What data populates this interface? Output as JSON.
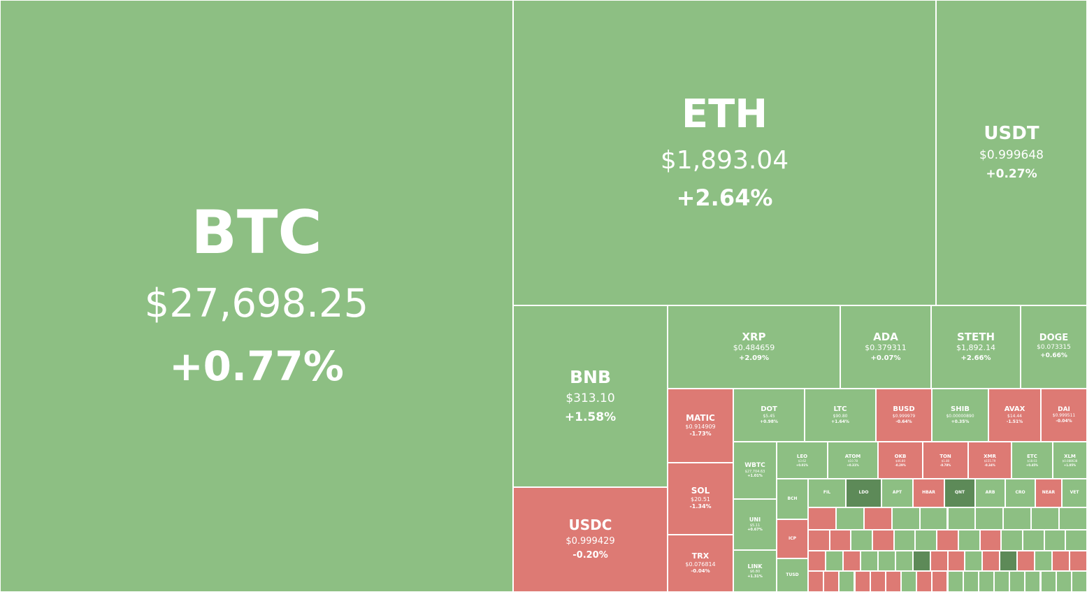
{
  "colors": {
    "up": "#8dbf83",
    "down": "#dd7a74",
    "up_strong": "#5d8a58",
    "down_strong": "#b34a44",
    "text": "#ffffff"
  },
  "chart_data": {
    "type": "treemap",
    "tiles": [
      {
        "symbol": "BTC",
        "price": "$27,698.25",
        "change": "+0.77%",
        "direction": "up"
      },
      {
        "symbol": "ETH",
        "price": "$1,893.04",
        "change": "+2.64%",
        "direction": "up"
      },
      {
        "symbol": "USDT",
        "price": "$0.999648",
        "change": "+0.27%",
        "direction": "up"
      },
      {
        "symbol": "BNB",
        "price": "$313.10",
        "change": "+1.58%",
        "direction": "up"
      },
      {
        "symbol": "USDC",
        "price": "$0.999429",
        "change": "-0.20%",
        "direction": "down"
      },
      {
        "symbol": "XRP",
        "price": "$0.484659",
        "change": "+2.09%",
        "direction": "up"
      },
      {
        "symbol": "ADA",
        "price": "$0.379311",
        "change": "+0.07%",
        "direction": "up"
      },
      {
        "symbol": "STETH",
        "price": "$1,892.14",
        "change": "+2.66%",
        "direction": "up"
      },
      {
        "symbol": "DOGE",
        "price": "$0.073315",
        "change": "+0.66%",
        "direction": "up"
      },
      {
        "symbol": "MATIC",
        "price": "$0.914909",
        "change": "-1.73%",
        "direction": "down"
      },
      {
        "symbol": "SOL",
        "price": "$20.51",
        "change": "-1.34%",
        "direction": "down"
      },
      {
        "symbol": "TRX",
        "price": "$0.076814",
        "change": "-0.04%",
        "direction": "down"
      },
      {
        "symbol": "DOT",
        "price": "$5.45",
        "change": "+0.98%",
        "direction": "up"
      },
      {
        "symbol": "LTC",
        "price": "$90.80",
        "change": "+1.64%",
        "direction": "up"
      },
      {
        "symbol": "BUSD",
        "price": "$0.999979",
        "change": "-0.64%",
        "direction": "down"
      },
      {
        "symbol": "SHIB",
        "price": "$0.00000890",
        "change": "+0.35%",
        "direction": "up"
      },
      {
        "symbol": "AVAX",
        "price": "$14.44",
        "change": "-1.51%",
        "direction": "down"
      },
      {
        "symbol": "DAI",
        "price": "$0.999511",
        "change": "-0.04%",
        "direction": "down"
      },
      {
        "symbol": "WBTC",
        "price": "$27,704.63",
        "change": "+1.01%",
        "direction": "up"
      },
      {
        "symbol": "LEO",
        "price": "$3.62",
        "change": "+0.01%",
        "direction": "up"
      },
      {
        "symbol": "ATOM",
        "price": "$10.78",
        "change": "+0.31%",
        "direction": "up"
      },
      {
        "symbol": "OKB",
        "price": "$46.80",
        "change": "-0.29%",
        "direction": "down"
      },
      {
        "symbol": "TON",
        "price": "$1.80",
        "change": "-0.78%",
        "direction": "down"
      },
      {
        "symbol": "XMR",
        "price": "$155.79",
        "change": "-0.34%",
        "direction": "down"
      },
      {
        "symbol": "ETC",
        "price": "$18.03",
        "change": "+0.45%",
        "direction": "up"
      },
      {
        "symbol": "XLM",
        "price": "$0.088638",
        "change": "+1.05%",
        "direction": "up"
      },
      {
        "symbol": "UNI",
        "price": "$5.11",
        "change": "+0.67%",
        "direction": "up"
      },
      {
        "symbol": "LINK",
        "price": "$6.80",
        "change": "+1.31%",
        "direction": "up"
      },
      {
        "symbol": "BCH",
        "price": "",
        "change": "",
        "direction": "up"
      },
      {
        "symbol": "FIL",
        "price": "",
        "change": "",
        "direction": "up"
      },
      {
        "symbol": "LDO",
        "price": "",
        "change": "",
        "direction": "up_strong"
      },
      {
        "symbol": "APT",
        "price": "",
        "change": "",
        "direction": "up"
      },
      {
        "symbol": "HBAR",
        "price": "",
        "change": "",
        "direction": "down"
      },
      {
        "symbol": "QNT",
        "price": "",
        "change": "",
        "direction": "up_strong"
      },
      {
        "symbol": "ARB",
        "price": "",
        "change": "",
        "direction": "up"
      },
      {
        "symbol": "CRO",
        "price": "",
        "change": "",
        "direction": "up"
      },
      {
        "symbol": "NEAR",
        "price": "",
        "change": "",
        "direction": "down"
      },
      {
        "symbol": "VET",
        "price": "",
        "change": "",
        "direction": "up"
      },
      {
        "symbol": "ICP",
        "price": "",
        "change": "",
        "direction": "down"
      },
      {
        "symbol": "TUSD",
        "price": "",
        "change": "",
        "direction": "up"
      }
    ],
    "filler": [
      "down",
      "up",
      "down",
      "up",
      "up",
      "up",
      "up",
      "up",
      "up",
      "up",
      "down",
      "down",
      "up",
      "down",
      "up",
      "up",
      "down",
      "up",
      "down",
      "up",
      "up",
      "up",
      "up",
      "down",
      "up",
      "down",
      "up",
      "up",
      "up",
      "up_strong",
      "down",
      "down",
      "up",
      "down",
      "up_strong",
      "down",
      "up",
      "down",
      "down",
      "down",
      "down",
      "up",
      "down",
      "down",
      "down",
      "up",
      "down",
      "down",
      "up",
      "up",
      "up",
      "up",
      "up",
      "up",
      "up",
      "up",
      "up",
      "up",
      "up",
      "up",
      "up",
      "down_strong",
      "up",
      "up",
      "up",
      "up",
      "up",
      "up",
      "up",
      "up",
      "up",
      "up",
      "up",
      "up",
      "up"
    ]
  }
}
